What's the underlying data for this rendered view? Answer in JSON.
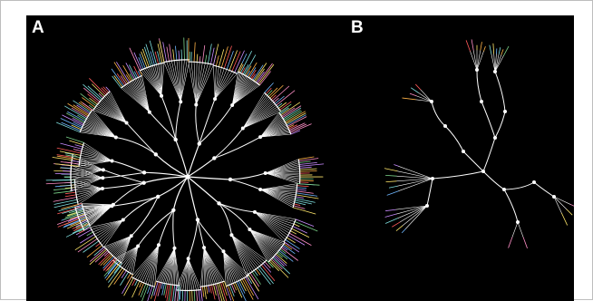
{
  "figure": {
    "panels": [
      {
        "label": "A"
      },
      {
        "label": "B"
      }
    ]
  },
  "colors": {
    "background": "#000000",
    "frame": "#ffffff",
    "branch": "#ffffff",
    "node": "#ffffff",
    "label_text": "#ffffff",
    "tip_palette": [
      "#ff5a5a",
      "#ffb347",
      "#7bd389",
      "#6fb7ff",
      "#c98bff",
      "#ffe76b",
      "#ff8fc7",
      "#7fe0e0"
    ]
  }
}
